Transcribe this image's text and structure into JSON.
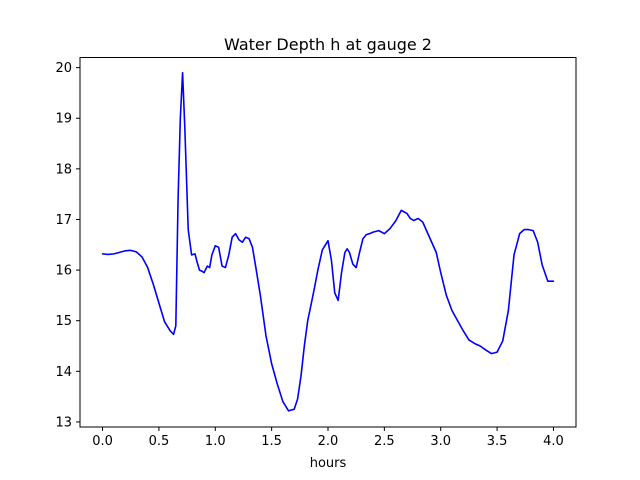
{
  "chart_data": {
    "type": "line",
    "title": "Water Depth h at gauge 2",
    "xlabel": "hours",
    "ylabel": "",
    "xlim": [
      -0.2,
      4.2
    ],
    "ylim": [
      12.9,
      20.2
    ],
    "xticks": [
      0.0,
      0.5,
      1.0,
      1.5,
      2.0,
      2.5,
      3.0,
      3.5,
      4.0
    ],
    "xtick_labels": [
      "0.0",
      "0.5",
      "1.0",
      "1.5",
      "2.0",
      "2.5",
      "3.0",
      "3.5",
      "4.0"
    ],
    "yticks": [
      13,
      14,
      15,
      16,
      17,
      18,
      19,
      20
    ],
    "ytick_labels": [
      "13",
      "14",
      "15",
      "16",
      "17",
      "18",
      "19",
      "20"
    ],
    "grid": false,
    "series": [
      {
        "color": "#0000ff",
        "x": [
          0.0,
          0.05,
          0.1,
          0.15,
          0.2,
          0.25,
          0.3,
          0.35,
          0.4,
          0.45,
          0.5,
          0.55,
          0.6,
          0.63,
          0.65,
          0.67,
          0.69,
          0.71,
          0.73,
          0.76,
          0.79,
          0.82,
          0.84,
          0.86,
          0.88,
          0.9,
          0.93,
          0.95,
          0.97,
          1.0,
          1.03,
          1.06,
          1.09,
          1.12,
          1.15,
          1.18,
          1.21,
          1.24,
          1.27,
          1.3,
          1.33,
          1.36,
          1.4,
          1.45,
          1.5,
          1.55,
          1.6,
          1.65,
          1.7,
          1.73,
          1.76,
          1.79,
          1.82,
          1.85,
          1.88,
          1.91,
          1.95,
          2.0,
          2.03,
          2.06,
          2.09,
          2.12,
          2.15,
          2.17,
          2.19,
          2.22,
          2.25,
          2.28,
          2.31,
          2.34,
          2.37,
          2.4,
          2.45,
          2.5,
          2.55,
          2.6,
          2.65,
          2.7,
          2.73,
          2.76,
          2.8,
          2.84,
          2.88,
          2.92,
          2.96,
          3.0,
          3.05,
          3.1,
          3.15,
          3.2,
          3.25,
          3.3,
          3.35,
          3.4,
          3.45,
          3.5,
          3.55,
          3.6,
          3.65,
          3.7,
          3.74,
          3.78,
          3.82,
          3.86,
          3.9,
          3.95,
          4.0
        ],
        "y": [
          16.32,
          16.31,
          16.32,
          16.35,
          16.38,
          16.39,
          16.36,
          16.26,
          16.05,
          15.72,
          15.35,
          14.98,
          14.8,
          14.73,
          14.9,
          17.4,
          19.0,
          19.9,
          18.8,
          16.8,
          16.3,
          16.32,
          16.15,
          16.0,
          15.98,
          15.95,
          16.08,
          16.05,
          16.3,
          16.48,
          16.45,
          16.08,
          16.05,
          16.3,
          16.65,
          16.72,
          16.6,
          16.55,
          16.65,
          16.62,
          16.45,
          16.05,
          15.5,
          14.7,
          14.15,
          13.75,
          13.4,
          13.22,
          13.25,
          13.45,
          13.9,
          14.5,
          15.0,
          15.32,
          15.65,
          16.0,
          16.4,
          16.58,
          16.2,
          15.55,
          15.4,
          15.95,
          16.35,
          16.42,
          16.35,
          16.12,
          16.05,
          16.35,
          16.62,
          16.7,
          16.72,
          16.75,
          16.78,
          16.72,
          16.82,
          16.97,
          17.18,
          17.12,
          17.02,
          16.98,
          17.02,
          16.95,
          16.75,
          16.55,
          16.35,
          15.95,
          15.5,
          15.2,
          15.0,
          14.8,
          14.62,
          14.55,
          14.5,
          14.42,
          14.35,
          14.38,
          14.6,
          15.2,
          16.3,
          16.72,
          16.8,
          16.8,
          16.78,
          16.55,
          16.1,
          15.78,
          15.78
        ]
      }
    ]
  }
}
